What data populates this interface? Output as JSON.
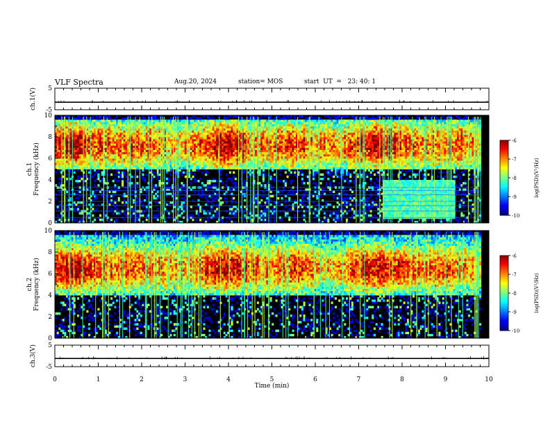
{
  "header": {
    "title": "VLF Spectra",
    "date": "Aug.20, 2024",
    "station": "station= MOS",
    "start_ut": "start  UT  =   23: 40: 1"
  },
  "chart_data": [
    {
      "type": "line",
      "ylabel": "ch.1(V)",
      "xlim": [
        0,
        10
      ],
      "ylim": [
        -5,
        5
      ],
      "yticks": [
        "5",
        "-5"
      ],
      "series": [
        {
          "values": [
            -1.5,
            -1.5,
            -1.5,
            -1.5,
            -1.5,
            -1.5,
            -1.5,
            -1.5,
            -1.5,
            -1.5,
            -1.5
          ]
        }
      ]
    },
    {
      "type": "heatmap",
      "ylabel": "ch.1\nFrequency (kHz)",
      "xlim": [
        0,
        10
      ],
      "ylim": [
        0,
        10
      ],
      "yticks": [
        "0",
        "2",
        "4",
        "6",
        "8",
        "10"
      ],
      "colorbar": {
        "label": "log(PSD)(V²/Hz)",
        "range": [
          -10,
          -6
        ],
        "ticks": [
          "-6",
          "-7",
          "-8",
          "-9",
          "-10"
        ]
      },
      "note_regions": [
        {
          "x": [
            7.55,
            9.2
          ],
          "y": [
            0.4,
            4.0
          ],
          "level": -8.2
        }
      ],
      "intense_band_khz": [
        5.0,
        9.5
      ]
    },
    {
      "type": "heatmap",
      "ylabel": "ch.2\nFrequency (kHz)",
      "xlim": [
        0,
        10
      ],
      "ylim": [
        0,
        10
      ],
      "yticks": [
        "0",
        "2",
        "4",
        "6",
        "8",
        "10"
      ],
      "colorbar": {
        "label": "log(PSD)(V²/Hz)",
        "range": [
          -10,
          -6
        ],
        "ticks": [
          "-6",
          "-7",
          "-8",
          "-9",
          "-10"
        ]
      },
      "intense_band_khz": [
        4.0,
        9.0
      ]
    },
    {
      "type": "line",
      "ylabel": "ch.3(V)",
      "xlabel": "Time  (min)",
      "xlim": [
        0,
        10
      ],
      "ylim": [
        -5,
        5
      ],
      "yticks": [
        "5",
        "-5"
      ],
      "xticks": [
        "0",
        "1",
        "2",
        "3",
        "4",
        "5",
        "6",
        "7",
        "8",
        "9",
        "10"
      ],
      "series": [
        {
          "values": [
            -1.2,
            -1.2,
            -1.2,
            -1.2,
            -1.2,
            -1.2,
            -1.2,
            -1.2,
            -1.2,
            -1.2,
            -1.2
          ]
        }
      ]
    }
  ]
}
